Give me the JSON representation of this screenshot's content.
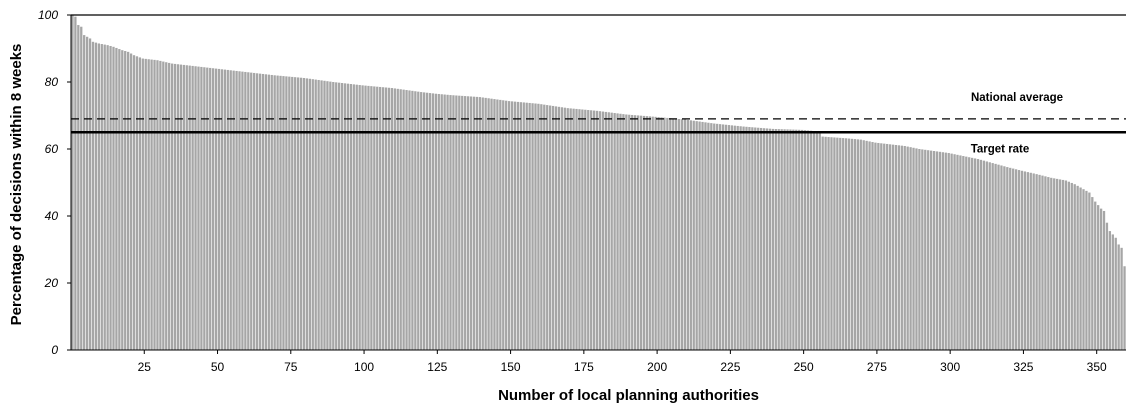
{
  "chart_data": {
    "type": "bar",
    "title": "",
    "xlabel": "Number of local planning authorities",
    "ylabel": "Percentage of decisions within 8 weeks",
    "xlim": [
      0,
      360
    ],
    "ylim": [
      0,
      100
    ],
    "x_ticks": [
      25,
      50,
      75,
      100,
      125,
      150,
      175,
      200,
      225,
      250,
      275,
      300,
      325,
      350
    ],
    "y_ticks": [
      0,
      20,
      40,
      60,
      80,
      100
    ],
    "grid": false,
    "legend": "none",
    "bar_color": "#a6a6a6",
    "bar_edge_color": "#ffffff",
    "series": [
      {
        "count": 360,
        "profile_points": [
          [
            1,
            100
          ],
          [
            2,
            99.5
          ],
          [
            3,
            97
          ],
          [
            4,
            96.5
          ],
          [
            5,
            94
          ],
          [
            6,
            93.5
          ],
          [
            7,
            93
          ],
          [
            8,
            92
          ],
          [
            10,
            91.5
          ],
          [
            13,
            91
          ],
          [
            15,
            90.5
          ],
          [
            18,
            89.5
          ],
          [
            20,
            89
          ],
          [
            22,
            88
          ],
          [
            25,
            87
          ],
          [
            30,
            86.5
          ],
          [
            35,
            85.5
          ],
          [
            40,
            85
          ],
          [
            50,
            84
          ],
          [
            55,
            83.5
          ],
          [
            60,
            83
          ],
          [
            70,
            82
          ],
          [
            80,
            81.2
          ],
          [
            90,
            80
          ],
          [
            100,
            79
          ],
          [
            110,
            78.2
          ],
          [
            120,
            77
          ],
          [
            125,
            76.5
          ],
          [
            130,
            76.1
          ],
          [
            140,
            75.5
          ],
          [
            150,
            74.3
          ],
          [
            160,
            73.5
          ],
          [
            170,
            72.2
          ],
          [
            180,
            71.4
          ],
          [
            190,
            70.3
          ],
          [
            200,
            69.6
          ],
          [
            210,
            68.8
          ],
          [
            220,
            67.6
          ],
          [
            230,
            66.7
          ],
          [
            240,
            66
          ],
          [
            250,
            65.7
          ],
          [
            256,
            65.2
          ],
          [
            257,
            63.7
          ],
          [
            265,
            63.2
          ],
          [
            270,
            62.8
          ],
          [
            275,
            61.9
          ],
          [
            285,
            60.9
          ],
          [
            290,
            60
          ],
          [
            300,
            58.8
          ],
          [
            310,
            57
          ],
          [
            315,
            55.8
          ],
          [
            320,
            54.6
          ],
          [
            325,
            53.5
          ],
          [
            330,
            52.5
          ],
          [
            335,
            51.4
          ],
          [
            340,
            50.6
          ],
          [
            343,
            49.5
          ],
          [
            345,
            48.5
          ],
          [
            348,
            47
          ],
          [
            350,
            44.3
          ],
          [
            352,
            42.2
          ],
          [
            353,
            41.5
          ],
          [
            354,
            38
          ],
          [
            355,
            35.5
          ],
          [
            356,
            34.5
          ],
          [
            357,
            33.5
          ],
          [
            358,
            31.5
          ],
          [
            359,
            30.5
          ],
          [
            360,
            25
          ]
        ]
      }
    ],
    "reference_lines": [
      {
        "label": "National average",
        "value": 69,
        "style": "dashed"
      },
      {
        "label": "Target rate",
        "value": 65,
        "style": "solid"
      }
    ]
  }
}
